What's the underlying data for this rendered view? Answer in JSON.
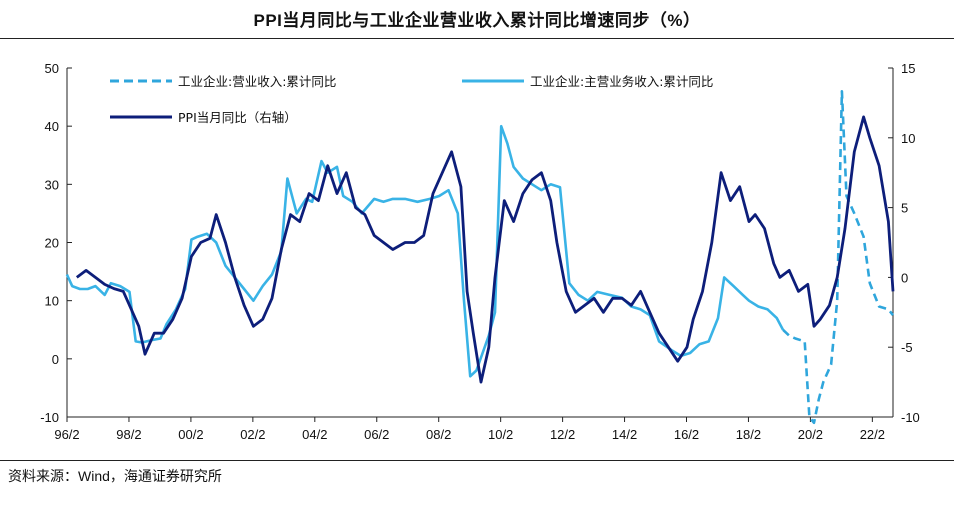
{
  "title": "PPI当月同比与工业企业营业收入累计同比增速同步（%）",
  "source": "资料来源：Wind，海通证券研究所",
  "colors": {
    "dashed": "#2fa6dc",
    "light": "#39b3e6",
    "dark": "#0d1e7a",
    "axis": "#222222"
  },
  "chart_data": {
    "type": "line",
    "left_axis": {
      "ylim": [
        -10,
        50
      ],
      "ticks": [
        "50",
        "40",
        "30",
        "20",
        "10",
        "0",
        "-10"
      ]
    },
    "right_axis": {
      "ylim": [
        -10,
        15
      ],
      "ticks": [
        "15",
        "10",
        "5",
        "0",
        "-5",
        "-10"
      ]
    },
    "x_range": [
      1996.083,
      2022.75
    ],
    "x_ticks": [
      "96/2",
      "98/2",
      "00/2",
      "02/2",
      "04/2",
      "06/2",
      "08/2",
      "10/2",
      "12/2",
      "14/2",
      "16/2",
      "18/2",
      "20/2",
      "22/2"
    ],
    "legend": [
      {
        "name": "工业企业:营业收入:累计同比",
        "style": "dashed"
      },
      {
        "name": "工业企业:主营业务收入:累计同比",
        "style": "light"
      },
      {
        "name": "PPI当月同比（右轴）",
        "style": "dark"
      }
    ],
    "series": [
      {
        "name": "工业企业:主营业务收入:累计同比",
        "axis": "left",
        "x": [
          1996.08,
          1996.25,
          1996.5,
          1996.75,
          1997.0,
          1997.3,
          1997.5,
          1997.8,
          1998.1,
          1998.3,
          1998.5,
          1998.8,
          1999.1,
          1999.3,
          1999.6,
          1999.9,
          2000.1,
          2000.3,
          2000.6,
          2000.9,
          2001.2,
          2001.5,
          2001.8,
          2002.1,
          2002.4,
          2002.7,
          2003.0,
          2003.2,
          2003.5,
          2003.8,
          2004.0,
          2004.3,
          2004.5,
          2004.8,
          2005.0,
          2005.3,
          2005.6,
          2006.0,
          2006.3,
          2006.6,
          2007.0,
          2007.4,
          2007.8,
          2008.1,
          2008.4,
          2008.7,
          2008.9,
          2009.1,
          2009.3,
          2009.5,
          2009.7,
          2009.9,
          2010.1,
          2010.3,
          2010.5,
          2010.8,
          2011.1,
          2011.4,
          2011.7,
          2012.0,
          2012.3,
          2012.6,
          2012.9,
          2013.2,
          2013.6,
          2014.0,
          2014.3,
          2014.6,
          2014.9,
          2015.2,
          2015.6,
          2015.9,
          2016.2,
          2016.5,
          2016.8,
          2017.1,
          2017.3,
          2017.6,
          2017.9,
          2018.1,
          2018.4,
          2018.7,
          2019.0,
          2019.2
        ],
        "y": [
          14.5,
          12.5,
          12.0,
          12.0,
          12.5,
          11.0,
          13.0,
          12.5,
          11.5,
          3.0,
          2.8,
          3.2,
          3.5,
          6.0,
          8.5,
          12.0,
          20.5,
          21.0,
          21.5,
          20.0,
          16.0,
          14.0,
          12.0,
          10.0,
          12.5,
          14.5,
          18.5,
          31.0,
          25.0,
          27.5,
          27.0,
          34.0,
          32.0,
          33.0,
          28.0,
          27.0,
          25.0,
          27.5,
          27.0,
          27.5,
          27.5,
          27.0,
          27.5,
          28.0,
          29.0,
          25.0,
          10.0,
          -3.0,
          -2.0,
          1.0,
          4.0,
          8.0,
          40.0,
          37.0,
          33.0,
          31.0,
          30.0,
          29.0,
          30.0,
          29.5,
          13.0,
          11.0,
          10.0,
          11.5,
          11.0,
          10.5,
          9.0,
          8.5,
          7.5,
          3.0,
          1.5,
          0.5,
          1.0,
          2.5,
          3.0,
          7.0,
          14.0,
          12.5,
          11.0,
          10.0,
          9.0,
          8.5,
          7.0,
          5.0
        ]
      },
      {
        "name": "工业企业:营业收入:累计同比",
        "axis": "left",
        "x": [
          2019.2,
          2019.4,
          2019.6,
          2019.9,
          2020.05,
          2020.2,
          2020.35,
          2020.5,
          2020.75,
          2020.95,
          2021.1,
          2021.25,
          2021.5,
          2021.8,
          2022.0,
          2022.3,
          2022.6,
          2022.75
        ],
        "y": [
          5.0,
          4.0,
          3.5,
          3.0,
          -10.0,
          -11.0,
          -7.0,
          -4.0,
          -1.0,
          10.0,
          46.0,
          28.0,
          25.0,
          21.0,
          13.0,
          9.0,
          8.5,
          7.5
        ]
      },
      {
        "name": "PPI当月同比（右轴）",
        "axis": "right",
        "x": [
          1996.4,
          1996.7,
          1997.0,
          1997.3,
          1997.6,
          1997.9,
          1998.1,
          1998.4,
          1998.6,
          1998.9,
          1999.2,
          1999.5,
          1999.8,
          2000.1,
          2000.4,
          2000.7,
          2000.9,
          2001.2,
          2001.5,
          2001.8,
          2002.1,
          2002.4,
          2002.7,
          2003.0,
          2003.3,
          2003.6,
          2003.9,
          2004.2,
          2004.5,
          2004.8,
          2005.1,
          2005.4,
          2005.7,
          2006.0,
          2006.3,
          2006.6,
          2007.0,
          2007.3,
          2007.6,
          2007.9,
          2008.2,
          2008.5,
          2008.8,
          2009.0,
          2009.2,
          2009.45,
          2009.7,
          2009.9,
          2010.2,
          2010.5,
          2010.8,
          2011.1,
          2011.4,
          2011.7,
          2011.9,
          2012.2,
          2012.5,
          2012.8,
          2013.1,
          2013.4,
          2013.7,
          2014.0,
          2014.3,
          2014.6,
          2014.9,
          2015.2,
          2015.5,
          2015.8,
          2016.1,
          2016.3,
          2016.6,
          2016.9,
          2017.2,
          2017.5,
          2017.8,
          2018.1,
          2018.3,
          2018.6,
          2018.9,
          2019.1,
          2019.4,
          2019.7,
          2020.0,
          2020.2,
          2020.4,
          2020.7,
          2020.95,
          2021.2,
          2021.5,
          2021.8,
          2022.0,
          2022.3,
          2022.6,
          2022.75
        ],
        "y": [
          0.0,
          0.5,
          0.0,
          -0.5,
          -0.8,
          -1.0,
          -2.0,
          -3.5,
          -5.5,
          -4.0,
          -4.0,
          -3.0,
          -1.5,
          1.5,
          2.5,
          2.8,
          4.5,
          2.5,
          0.0,
          -2.0,
          -3.5,
          -3.0,
          -1.5,
          2.0,
          4.5,
          4.0,
          6.0,
          5.5,
          8.0,
          6.0,
          7.5,
          5.0,
          4.5,
          3.0,
          2.5,
          2.0,
          2.5,
          2.5,
          3.0,
          6.0,
          7.5,
          9.0,
          6.5,
          -1.0,
          -4.0,
          -7.5,
          -5.0,
          0.0,
          5.5,
          4.0,
          6.0,
          7.0,
          7.5,
          5.5,
          2.5,
          -1.0,
          -2.5,
          -2.0,
          -1.5,
          -2.5,
          -1.5,
          -1.5,
          -2.0,
          -1.0,
          -2.5,
          -4.0,
          -5.0,
          -6.0,
          -5.0,
          -3.0,
          -1.0,
          2.5,
          7.5,
          5.5,
          6.5,
          4.0,
          4.5,
          3.5,
          1.0,
          0.0,
          0.5,
          -1.0,
          -0.5,
          -3.5,
          -3.0,
          -2.0,
          0.0,
          3.5,
          9.0,
          11.5,
          10.0,
          8.0,
          4.0,
          -1.0
        ]
      }
    ]
  }
}
